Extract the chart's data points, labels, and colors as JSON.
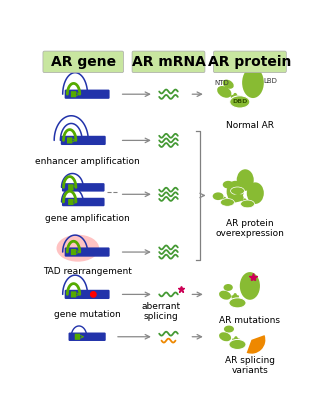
{
  "col1_header": "AR gene",
  "col2_header": "AR mRNA",
  "col3_header": "AR protein",
  "row_labels": [
    "",
    "enhancer amplification",
    "gene amplification",
    "TAD rearrangement",
    "gene mutation",
    "aberrant\nsplicing"
  ],
  "protein_labels": [
    "Normal AR",
    "AR protein\noverexpression",
    "AR mutations",
    "AR splicing\nvariants"
  ],
  "background": "#ffffff",
  "header_bg": "#c8e6a0",
  "dark_blue": "#2233aa",
  "green": "#55aa00",
  "light_green": "#88bb33",
  "pale_green": "#aaccaa",
  "mRNA_green": "#449933",
  "arrow_color": "#888888",
  "pink_glow": "#ffaaaa",
  "magenta_star": "#cc0055",
  "orange": "#ee8800",
  "text_color": "#000000",
  "header_fontsize": 10,
  "label_fontsize": 6.5
}
